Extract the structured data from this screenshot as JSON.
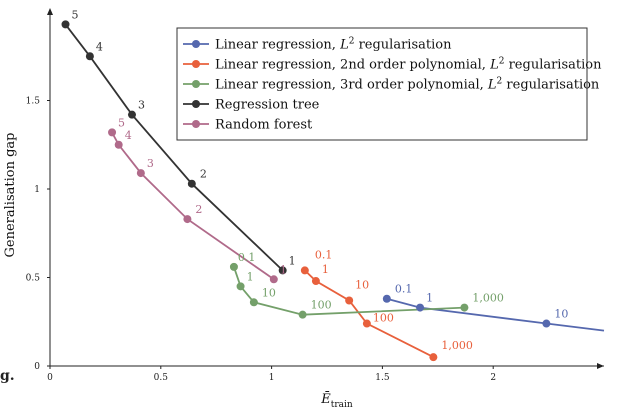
{
  "chart_data": {
    "type": "line",
    "title": "",
    "xlabel_main": "Ē",
    "xlabel_sub": "train",
    "ylabel": "Generalisation gap",
    "xlim": [
      0,
      2.5
    ],
    "ylim": [
      0,
      2.0
    ],
    "xticks": [
      0,
      0.5,
      1,
      1.5,
      2
    ],
    "xtick_labels": [
      "0",
      "0.5",
      "1",
      "1.5",
      "2"
    ],
    "yticks": [
      0,
      0.5,
      1,
      1.5
    ],
    "ytick_labels": [
      "0",
      "0.5",
      "1",
      "1.5"
    ],
    "grid": false,
    "legend_position": "top-right",
    "series": [
      {
        "name": "Linear regression, L² regularisation",
        "legend_main": "Linear regression, ",
        "legend_math": "L",
        "legend_sup": "2",
        "legend_tail": " regularisation",
        "color": "#5568ae",
        "x": [
          1.52,
          1.67,
          2.24,
          2.5
        ],
        "y": [
          0.38,
          0.33,
          0.24,
          0.2
        ],
        "labels": [
          "0.1",
          "1",
          "10",
          ""
        ],
        "markers": [
          true,
          true,
          true,
          false
        ]
      },
      {
        "name": "Linear regression, 2nd order polynomial, L² regularisation",
        "legend_main": "Linear regression, 2nd order polynomial, ",
        "legend_math": "L",
        "legend_sup": "2",
        "legend_tail": " regularisation",
        "color": "#e8603c",
        "x": [
          1.15,
          1.2,
          1.35,
          1.43,
          1.73
        ],
        "y": [
          0.54,
          0.48,
          0.37,
          0.24,
          0.05
        ],
        "labels": [
          "0.1",
          "1",
          "10",
          "100",
          "1,000"
        ],
        "markers": [
          true,
          true,
          true,
          true,
          true
        ]
      },
      {
        "name": "Linear regression, 3rd order polynomial, L² regularisation",
        "legend_main": "Linear regression, 3rd order polynomial, ",
        "legend_math": "L",
        "legend_sup": "2",
        "legend_tail": " regularisation",
        "color": "#74a06a",
        "x": [
          0.83,
          0.86,
          0.92,
          1.14,
          1.87
        ],
        "y": [
          0.56,
          0.45,
          0.36,
          0.29,
          0.33
        ],
        "labels": [
          "0.1",
          "1",
          "10",
          "100",
          "1,000"
        ],
        "markers": [
          true,
          true,
          true,
          true,
          true
        ]
      },
      {
        "name": "Regression tree",
        "legend_main": "Regression tree",
        "legend_math": "",
        "legend_sup": "",
        "legend_tail": "",
        "color": "#333333",
        "x": [
          0.07,
          0.18,
          0.37,
          0.64,
          1.05
        ],
        "y": [
          1.93,
          1.75,
          1.42,
          1.03,
          0.54
        ],
        "labels": [
          "5",
          "4",
          "3",
          "2",
          "1"
        ],
        "markers": [
          true,
          true,
          true,
          true,
          true
        ]
      },
      {
        "name": "Random forest",
        "legend_main": "Random forest",
        "legend_math": "",
        "legend_sup": "",
        "legend_tail": "",
        "color": "#b06a8a",
        "x": [
          0.28,
          0.31,
          0.41,
          0.62,
          1.01
        ],
        "y": [
          1.32,
          1.25,
          1.09,
          0.83,
          0.49
        ],
        "labels": [
          "5",
          "4",
          "3",
          "2",
          "1"
        ],
        "markers": [
          true,
          true,
          true,
          true,
          true
        ]
      }
    ]
  },
  "stray_text": "g."
}
